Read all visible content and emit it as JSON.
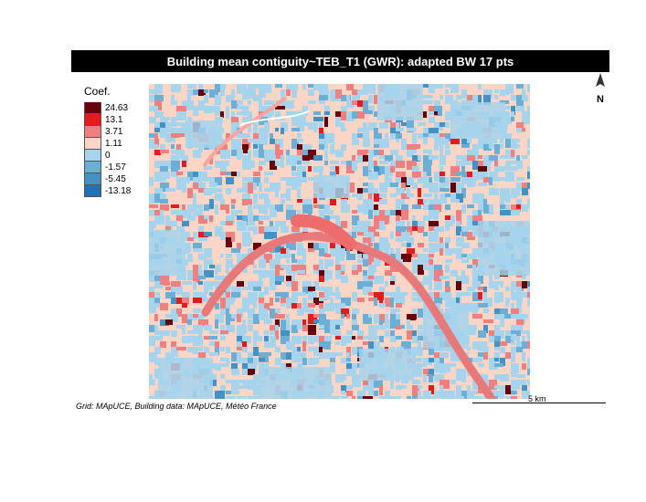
{
  "title": "Building mean contiguity~TEB_T1 (GWR): adapted BW 17 pts",
  "legend": {
    "title": "Coef.",
    "items": [
      {
        "label": "24.63",
        "color": "#67000d"
      },
      {
        "label": "13.1",
        "color": "#e41a1c"
      },
      {
        "label": "3.71",
        "color": "#f08080"
      },
      {
        "label": "1.11",
        "color": "#fbd5c5"
      },
      {
        "label": "0",
        "color": "#a6d4ec"
      },
      {
        "label": "-1.57",
        "color": "#6baed6"
      },
      {
        "label": "-5.45",
        "color": "#4292c6"
      },
      {
        "label": "-13.18",
        "color": "#2171b5"
      }
    ]
  },
  "north_arrow": {
    "label": "N"
  },
  "scalebar": {
    "label": "5 km"
  },
  "credit": "Grid: MApUCE, Building data: MApUCE, Météo France"
}
